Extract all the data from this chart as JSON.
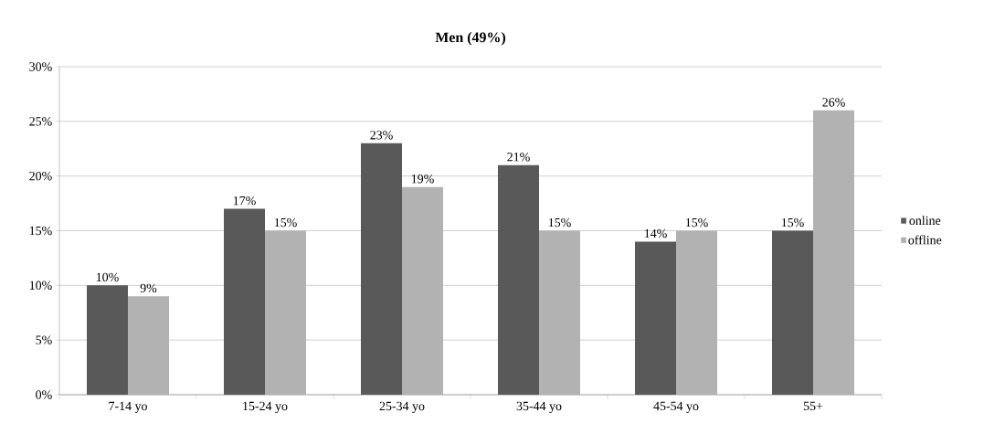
{
  "chart_data": {
    "type": "bar",
    "title": "Men (49%)",
    "categories": [
      "7-14 yo",
      "15-24 yo",
      "25-34 yo",
      "35-44 yo",
      "45-54 yo",
      "55+"
    ],
    "series": [
      {
        "name": "online",
        "color": "#595959",
        "values": [
          10,
          17,
          23,
          21,
          14,
          15
        ],
        "value_labels": [
          "10%",
          "17%",
          "23%",
          "21%",
          "14%",
          "15%"
        ]
      },
      {
        "name": "offline",
        "color": "#b2b2b2",
        "values": [
          9,
          15,
          19,
          15,
          15,
          26
        ],
        "value_labels": [
          "9%",
          "15%",
          "19%",
          "15%",
          "15%",
          "26%"
        ]
      }
    ],
    "ylim": [
      0,
      30
    ],
    "yticks": [
      {
        "value": 0,
        "label": "0%"
      },
      {
        "value": 5,
        "label": "5%"
      },
      {
        "value": 10,
        "label": "10%"
      },
      {
        "value": 15,
        "label": "15%"
      },
      {
        "value": 20,
        "label": "20%"
      },
      {
        "value": 25,
        "label": "25%"
      },
      {
        "value": 30,
        "label": "30%"
      }
    ],
    "grid": "y",
    "legend": "right"
  }
}
